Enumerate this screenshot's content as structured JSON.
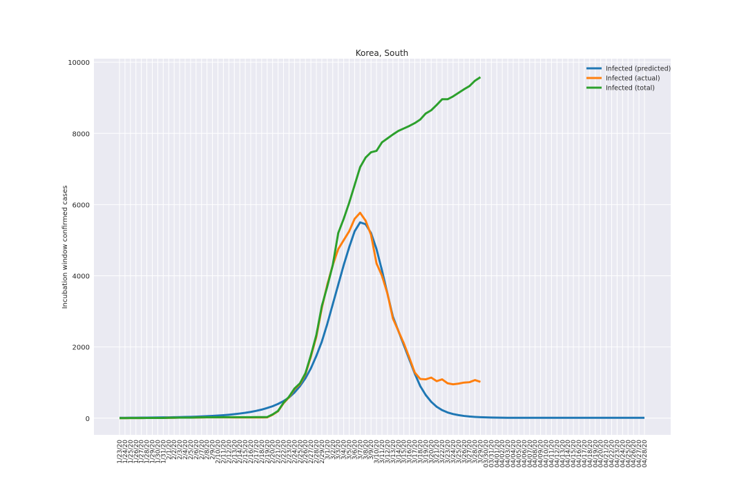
{
  "chart_data": {
    "type": "line",
    "title": "Korea, South",
    "y_label": "Incubation window confirmed cases",
    "categories": [
      "1/23/20",
      "1/24/20",
      "1/25/20",
      "1/26/20",
      "1/27/20",
      "1/28/20",
      "1/29/20",
      "1/30/20",
      "1/31/20",
      "2/1/20",
      "2/2/20",
      "2/3/20",
      "2/4/20",
      "2/5/20",
      "2/6/20",
      "2/7/20",
      "2/8/20",
      "2/9/20",
      "2/10/20",
      "2/11/20",
      "2/12/20",
      "2/13/20",
      "2/14/20",
      "2/15/20",
      "2/16/20",
      "2/17/20",
      "2/18/20",
      "2/19/20",
      "2/20/20",
      "2/21/20",
      "2/22/20",
      "2/23/20",
      "2/24/20",
      "2/25/20",
      "2/26/20",
      "2/27/20",
      "2/28/20",
      "2/29/20",
      "3/1/20",
      "3/2/20",
      "3/3/20",
      "3/4/20",
      "3/5/20",
      "3/6/20",
      "3/7/20",
      "3/8/20",
      "3/9/20",
      "3/10/20",
      "3/11/20",
      "3/12/20",
      "3/13/20",
      "3/14/20",
      "3/15/20",
      "3/16/20",
      "3/17/20",
      "3/18/20",
      "3/19/20",
      "3/20/20",
      "3/21/20",
      "3/22/20",
      "3/23/20",
      "3/24/20",
      "3/25/20",
      "3/26/20",
      "3/27/20",
      "3/28/20",
      "3/29/20",
      "03/30/20",
      "03/31/20",
      "04/01/20",
      "04/02/20",
      "04/03/20",
      "04/04/20",
      "04/05/20",
      "04/06/20",
      "04/07/20",
      "04/08/20",
      "04/09/20",
      "04/10/20",
      "04/11/20",
      "04/12/20",
      "04/13/20",
      "04/14/20",
      "04/15/20",
      "04/16/20",
      "04/17/20",
      "04/18/20",
      "04/19/20",
      "04/20/20",
      "04/21/20",
      "04/22/20",
      "04/23/20",
      "04/24/20",
      "04/25/20",
      "04/26/20",
      "04/27/20",
      "04/28/20"
    ],
    "series": [
      {
        "name": "Infected (predicted)",
        "color": "#1f77b4",
        "values": [
          10,
          11,
          12,
          13,
          14,
          15,
          17,
          19,
          21,
          23,
          26,
          29,
          33,
          37,
          42,
          48,
          55,
          63,
          72,
          83,
          96,
          112,
          130,
          150,
          175,
          205,
          240,
          285,
          335,
          400,
          480,
          580,
          720,
          900,
          1120,
          1400,
          1750,
          2150,
          2650,
          3200,
          3750,
          4300,
          4800,
          5250,
          5500,
          5450,
          5200,
          4750,
          4150,
          3500,
          2850,
          2450,
          2050,
          1650,
          1250,
          900,
          650,
          460,
          320,
          225,
          160,
          115,
          85,
          62,
          46,
          35,
          27,
          21,
          17,
          14,
          12,
          11,
          11,
          10,
          10,
          10,
          10,
          10,
          10,
          10,
          10,
          10,
          10,
          10,
          10,
          10,
          10,
          10,
          10,
          10,
          10,
          10,
          10,
          10,
          10,
          10,
          10
        ]
      },
      {
        "name": "Infected (actual)",
        "color": "#ff7f0e",
        "values": [
          1,
          1,
          2,
          2,
          3,
          4,
          4,
          4,
          4,
          11,
          11,
          14,
          14,
          15,
          17,
          20,
          21,
          21,
          21,
          22,
          21,
          20,
          20,
          20,
          19,
          19,
          19,
          22,
          95,
          195,
          420,
          585,
          815,
          955,
          1235,
          1730,
          2290,
          3100,
          3750,
          4300,
          4750,
          5000,
          5250,
          5600,
          5770,
          5550,
          5150,
          4350,
          4000,
          3500,
          2800,
          2450,
          2100,
          1700,
          1280,
          1100,
          1090,
          1140,
          1040,
          1090,
          980,
          950,
          970,
          1000,
          1010,
          1070,
          1020,
          null,
          null,
          null,
          null,
          null,
          null,
          null,
          null,
          null,
          null,
          null,
          null,
          null,
          null,
          null,
          null,
          null,
          null,
          null,
          null,
          null,
          null,
          null,
          null,
          null,
          null,
          null,
          null,
          null,
          null
        ]
      },
      {
        "name": "Infected (total)",
        "color": "#2ca02c",
        "values": [
          1,
          1,
          2,
          2,
          3,
          4,
          4,
          4,
          4,
          11,
          12,
          15,
          15,
          16,
          19,
          23,
          24,
          24,
          25,
          27,
          28,
          28,
          28,
          28,
          28,
          29,
          30,
          31,
          104,
          204,
          433,
          602,
          833,
          977,
          1261,
          1766,
          2337,
          3150,
          3700,
          4300,
          5200,
          5600,
          6050,
          6550,
          7050,
          7320,
          7470,
          7510,
          7750,
          7860,
          7970,
          8070,
          8140,
          8210,
          8290,
          8390,
          8560,
          8650,
          8800,
          8960,
          8960,
          9040,
          9140,
          9240,
          9330,
          9480,
          9580,
          null,
          null,
          null,
          null,
          null,
          null,
          null,
          null,
          null,
          null,
          null,
          null,
          null,
          null,
          null,
          null,
          null,
          null,
          null,
          null,
          null,
          null,
          null,
          null,
          null,
          null,
          null,
          null,
          null,
          null
        ]
      }
    ],
    "ylim": [
      -470,
      10100
    ],
    "yticks": [
      0,
      2000,
      4000,
      6000,
      8000,
      10000
    ],
    "grid": true,
    "legend": "upper right"
  }
}
